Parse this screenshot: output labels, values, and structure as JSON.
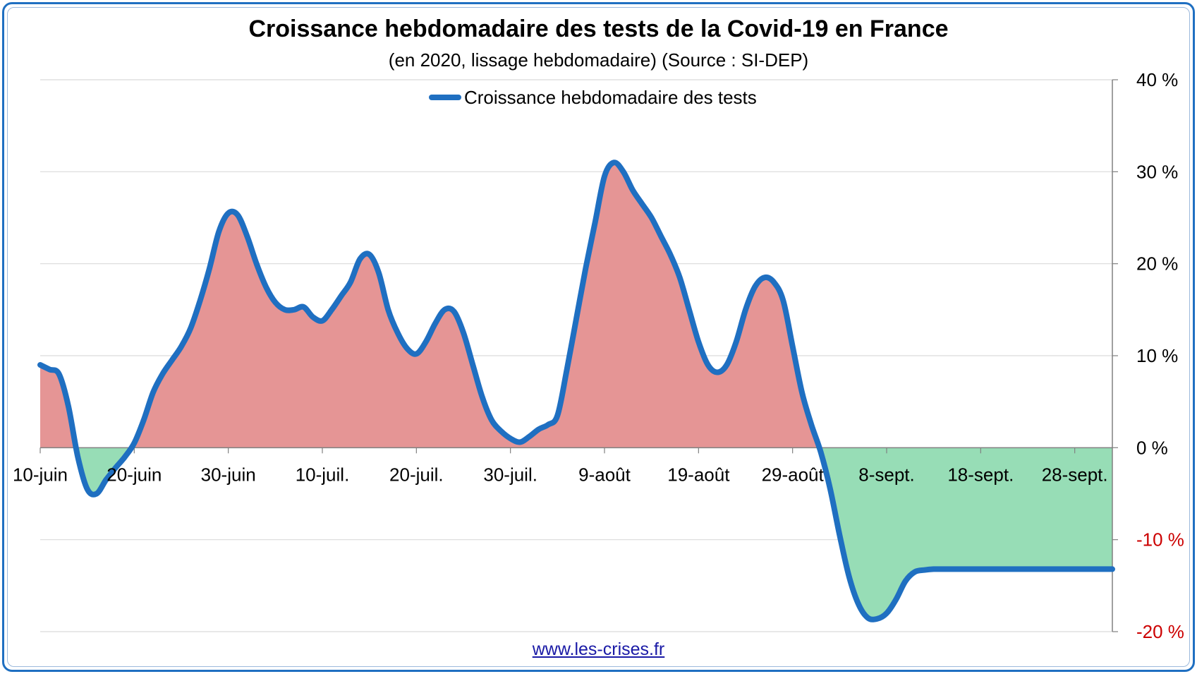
{
  "chart": {
    "title": "Croissance hebdomadaire des tests de la Covid-19 en France",
    "subtitle": "(en 2020, lissage hebdomadaire) (Source : SI-DEP)",
    "footer": "www.les-crises.fr"
  },
  "colors": {
    "line": "#1f6fc1",
    "positive_fill": "#e59595",
    "negative_fill": "#97ddb6",
    "negative_tick": "#cc0000",
    "grid": "#d9d9d9",
    "frame": "#1f6fc1"
  },
  "chart_data": {
    "type": "area",
    "title": "Croissance hebdomadaire des tests de la Covid-19 en France",
    "subtitle": "(en 2020, lissage hebdomadaire) (Source : SI-DEP)",
    "xlabel": "",
    "ylabel": "",
    "ylim": [
      -20,
      40
    ],
    "y_axis_side": "right",
    "y_ticks": [
      40,
      30,
      20,
      10,
      0,
      -10,
      -20
    ],
    "y_tick_labels": [
      "40 %",
      "30 %",
      "20 %",
      "10 %",
      "0 %",
      "-10 %",
      "-20 %"
    ],
    "x_tick_labels": [
      "10-juin",
      "20-juin",
      "30-juin",
      "10-juil.",
      "20-juil.",
      "30-juil.",
      "9-août",
      "19-août",
      "29-août",
      "8-sept.",
      "18-sept.",
      "28-sept."
    ],
    "x_day_range": [
      0,
      114
    ],
    "x_tick_days": [
      0,
      10,
      20,
      30,
      40,
      50,
      60,
      70,
      80,
      90,
      100,
      110
    ],
    "grid": true,
    "legend": "top-center",
    "series": [
      {
        "name": "Croissance hebdomadaire des tests",
        "x_day": [
          0,
          1,
          2,
          3,
          4,
          5,
          6,
          7,
          8,
          9,
          10,
          11,
          12,
          13,
          14,
          15,
          16,
          17,
          18,
          19,
          20,
          21,
          22,
          23,
          24,
          25,
          26,
          27,
          28,
          29,
          30,
          31,
          32,
          33,
          34,
          35,
          36,
          37,
          38,
          39,
          40,
          41,
          42,
          43,
          44,
          45,
          46,
          47,
          48,
          49,
          50,
          51,
          52,
          53,
          54,
          55,
          56,
          57,
          58,
          59,
          60,
          61,
          62,
          63,
          64,
          65,
          66,
          67,
          68,
          69,
          70,
          71,
          72,
          73,
          74,
          75,
          76,
          77,
          78,
          79,
          80,
          81,
          82,
          83,
          84,
          85,
          86,
          87,
          88,
          89,
          90,
          91,
          92,
          93,
          94,
          95,
          96,
          97,
          98,
          99,
          100,
          101,
          102,
          103,
          104,
          105,
          106,
          107,
          108,
          109,
          110,
          111,
          112,
          113,
          114
        ],
        "values": [
          9.0,
          8.5,
          8.0,
          4.5,
          -1.0,
          -4.5,
          -5.0,
          -3.5,
          -2.2,
          -1.0,
          0.5,
          3.0,
          6.0,
          8.0,
          9.5,
          11.0,
          13.0,
          16.0,
          19.5,
          23.5,
          25.5,
          25.3,
          23.0,
          20.0,
          17.5,
          15.8,
          15.0,
          15.0,
          15.3,
          14.2,
          13.8,
          15.0,
          16.5,
          18.0,
          20.5,
          21.0,
          19.0,
          15.0,
          12.5,
          10.8,
          10.2,
          11.5,
          13.5,
          15.0,
          14.8,
          12.5,
          9.0,
          5.5,
          3.0,
          1.8,
          1.0,
          0.6,
          1.2,
          2.0,
          2.5,
          3.5,
          8.5,
          14.0,
          19.5,
          24.5,
          29.5,
          31.0,
          30.0,
          28.0,
          26.5,
          25.0,
          23.0,
          21.0,
          18.5,
          15.0,
          11.5,
          9.0,
          8.2,
          9.0,
          11.5,
          15.0,
          17.5,
          18.5,
          18.0,
          16.0,
          11.0,
          6.0,
          2.5,
          -0.5,
          -4.5,
          -9.5,
          -14.0,
          -17.0,
          -18.5,
          -18.6,
          -18.0,
          -16.5,
          -14.5,
          -13.5,
          -13.3,
          -13.2,
          -13.2,
          -13.2,
          -13.2,
          -13.2,
          -13.2,
          -13.2,
          -13.2,
          -13.2,
          -13.2,
          -13.2,
          -13.2,
          -13.2,
          -13.2,
          -13.2,
          -13.2,
          -13.2,
          -13.2,
          -13.2,
          -13.2
        ]
      }
    ]
  }
}
